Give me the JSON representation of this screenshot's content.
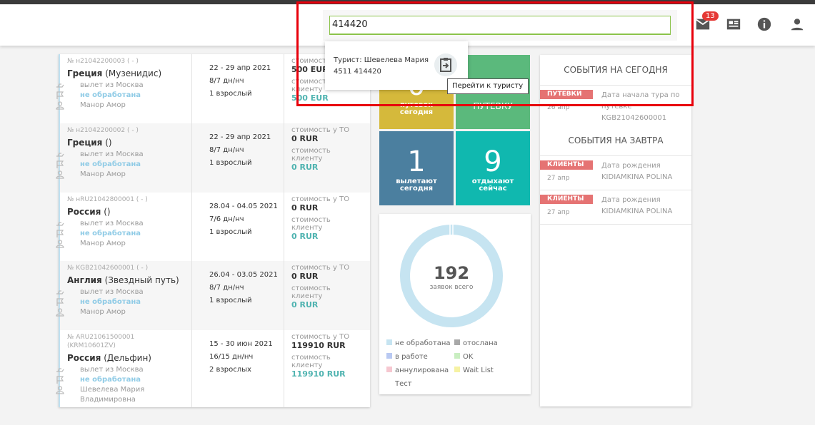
{
  "header": {
    "search_value": "414420",
    "mail_badge": "13"
  },
  "dropdown": {
    "name": "Турист: Шевелева Мария",
    "passport": "4511 414420",
    "tooltip": "Перейти к туристу"
  },
  "orders": [
    {
      "number": "№ н21042200003 ( - )",
      "country": "Греция",
      "hotel": "(Музенидис)",
      "departure": "вылет из Москва",
      "status": "не обработана",
      "manager": "Манор Амор",
      "dates": "22 - 29 апр 2021",
      "nights": "8/7 дн/нч",
      "pax": "1 взрослый",
      "cost_to_label": "стоимость у ТО",
      "cost_to": "500 EUR",
      "cost_client_label": "стоимость клиенту",
      "cost_client": "500 EUR"
    },
    {
      "number": "№ н21042200002 ( - )",
      "country": "Греция",
      "hotel": "()",
      "departure": "вылет из Москва",
      "status": "не обработана",
      "manager": "Манор Амор",
      "dates": "22 - 29 апр 2021",
      "nights": "8/7 дн/нч",
      "pax": "1 взрослый",
      "cost_to_label": "стоимость у ТО",
      "cost_to": "0 RUR",
      "cost_client_label": "стоимость клиенту",
      "cost_client": "0 RUR"
    },
    {
      "number": "№ нRU21042800001 ( - )",
      "country": "Россия",
      "hotel": "()",
      "departure": "вылет из Москва",
      "status": "не обработана",
      "manager": "Манор Амор",
      "dates": "28.04 - 04.05 2021",
      "nights": "7/6 дн/нч",
      "pax": "1 взрослый",
      "cost_to_label": "стоимость у ТО",
      "cost_to": "0 RUR",
      "cost_client_label": "стоимость клиенту",
      "cost_client": "0 RUR"
    },
    {
      "number": "№ KGB21042600001 ( - )",
      "country": "Англия",
      "hotel": "(Звездный путь)",
      "departure": "вылет из Москва",
      "status": "не обработана",
      "manager": "Манор Амор",
      "dates": "26.04 - 03.05 2021",
      "nights": "8/7 дн/нч",
      "pax": "1 взрослый",
      "cost_to_label": "стоимость у ТО",
      "cost_to": "0 RUR",
      "cost_client_label": "стоимость клиенту",
      "cost_client": "0 RUR"
    },
    {
      "number": "№ ARU21061500001 (KRM10601ZV)",
      "country": "Россия",
      "hotel": "(Дельфин)",
      "departure": "вылет из Москва",
      "status": "не обработана",
      "manager": "Шевелева Мария Владимировна",
      "dates": "15 - 30 июн 2021",
      "nights": "16/15 дн/нч",
      "pax": "2 взрослых",
      "cost_to_label": "стоимость у ТО",
      "cost_to": "119910 RUR",
      "cost_client_label": "стоимость клиенту",
      "cost_client": "119910 RUR"
    }
  ],
  "tiles": [
    {
      "value": "0",
      "label": "путевок сегодня",
      "color": "#d5b93b"
    },
    {
      "value": "",
      "label": "ПУТЕВКУ",
      "color": "#5bb97c"
    },
    {
      "value": "1",
      "label": "вылетают сегодня",
      "color": "#4b7f9f"
    },
    {
      "value": "9",
      "label": "отдыхают сейчас",
      "color": "#10b8af"
    }
  ],
  "summary": {
    "total": "192",
    "total_label": "заявок всего",
    "legend": [
      {
        "name": "не обработана",
        "color": "#c6e4f1"
      },
      {
        "name": "отослана",
        "color": "#a8a8a8"
      },
      {
        "name": "в работе",
        "color": "#b9c9f2"
      },
      {
        "name": "OK",
        "color": "#c9eec1"
      },
      {
        "name": "аннулирована",
        "color": "#f6c7d0"
      },
      {
        "name": "Wait List",
        "color": "#f6f2a3"
      },
      {
        "name": "Тест",
        "color": null
      }
    ]
  },
  "events": {
    "today_title": "СОБЫТИЯ НА СЕГОДНЯ",
    "today": [
      {
        "tag": "ПУТЕВКИ",
        "date": "26 апр",
        "text": "Дата начала тура по путевке",
        "detail": "KGB21042600001"
      }
    ],
    "tomorrow_title": "СОБЫТИЯ НА ЗАВТРА",
    "tomorrow": [
      {
        "tag": "КЛИЕНТЫ",
        "date": "27 апр",
        "text": "Дата рождения",
        "detail": "KIDIAMKINA POLINA"
      },
      {
        "tag": "КЛИЕНТЫ",
        "date": "27 апр",
        "text": "Дата рождения",
        "detail": "KIDIAMKINA POLINA"
      }
    ]
  }
}
